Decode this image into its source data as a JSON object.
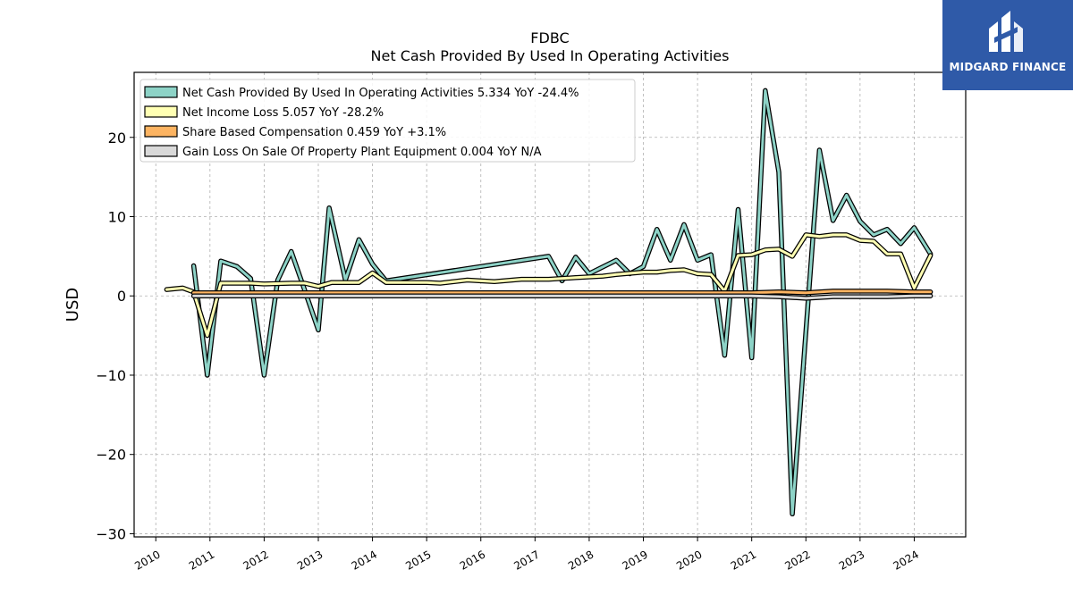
{
  "brand": {
    "name": "MIDGARD FINANCE",
    "icon": "midgard-logo-icon",
    "color": "#2f5aa8"
  },
  "chart_data": {
    "type": "line",
    "title": "FDBC",
    "subtitle": "Net Cash Provided By Used In Operating Activities",
    "xlabel": "",
    "ylabel": "USD",
    "xlim": [
      2009.6,
      2024.95
    ],
    "ylim": [
      -30.4,
      28.2
    ],
    "x_ticks": [
      "2010",
      "2011",
      "2012",
      "2013",
      "2014",
      "2015",
      "2016",
      "2017",
      "2018",
      "2019",
      "2020",
      "2021",
      "2022",
      "2023",
      "2024"
    ],
    "y_ticks": [
      20,
      10,
      0,
      -10,
      -20,
      -30
    ],
    "y_tick_labels": [
      "20",
      "10",
      "0",
      "−10",
      "−20",
      "−30"
    ],
    "grid": true,
    "legend_position": "top-left",
    "series": [
      {
        "name": "Net Cash Provided By Used In Operating Activities",
        "legend": "Net Cash Provided By Used In Operating Activities  5.334 YoY -24.4%",
        "color": "#8dd3c7",
        "points": [
          [
            2010.7,
            3.8
          ],
          [
            2010.95,
            -10.0
          ],
          [
            2011.2,
            4.4
          ],
          [
            2011.5,
            3.7
          ],
          [
            2011.75,
            2.2
          ],
          [
            2012.0,
            -10.0
          ],
          [
            2012.25,
            2.0
          ],
          [
            2012.5,
            5.6
          ],
          [
            2012.75,
            0.7
          ],
          [
            2013.0,
            -4.3
          ],
          [
            2013.2,
            11.1
          ],
          [
            2013.5,
            2.0
          ],
          [
            2013.75,
            7.1
          ],
          [
            2014.0,
            4.0
          ],
          [
            2014.25,
            1.9
          ],
          [
            2017.25,
            5.0
          ],
          [
            2017.5,
            1.9
          ],
          [
            2017.75,
            4.9
          ],
          [
            2018.0,
            2.8
          ],
          [
            2018.5,
            4.5
          ],
          [
            2018.75,
            2.8
          ],
          [
            2019.0,
            3.7
          ],
          [
            2019.25,
            8.4
          ],
          [
            2019.5,
            4.5
          ],
          [
            2019.75,
            9.0
          ],
          [
            2020.0,
            4.5
          ],
          [
            2020.25,
            5.2
          ],
          [
            2020.5,
            -7.5
          ],
          [
            2020.75,
            10.9
          ],
          [
            2021.0,
            -7.8
          ],
          [
            2021.25,
            25.9
          ],
          [
            2021.5,
            15.6
          ],
          [
            2021.75,
            -27.5
          ],
          [
            2022.25,
            18.4
          ],
          [
            2022.5,
            9.5
          ],
          [
            2022.75,
            12.7
          ],
          [
            2023.0,
            9.4
          ],
          [
            2023.25,
            7.7
          ],
          [
            2023.5,
            8.4
          ],
          [
            2023.75,
            6.6
          ],
          [
            2024.0,
            8.6
          ],
          [
            2024.3,
            5.3
          ]
        ]
      },
      {
        "name": "Net Income Loss",
        "legend": "Net Income Loss  5.057 YoY -28.2%",
        "color": "#ffffb3",
        "points": [
          [
            2010.2,
            0.8
          ],
          [
            2010.5,
            1.0
          ],
          [
            2010.7,
            0.5
          ],
          [
            2010.95,
            -5.0
          ],
          [
            2011.2,
            1.6
          ],
          [
            2011.5,
            1.6
          ],
          [
            2011.75,
            1.6
          ],
          [
            2012.0,
            1.5
          ],
          [
            2012.5,
            1.6
          ],
          [
            2012.75,
            1.6
          ],
          [
            2013.0,
            1.2
          ],
          [
            2013.25,
            1.7
          ],
          [
            2013.75,
            1.7
          ],
          [
            2014.0,
            2.9
          ],
          [
            2014.25,
            1.7
          ],
          [
            2015.0,
            1.7
          ],
          [
            2015.25,
            1.6
          ],
          [
            2015.75,
            2.0
          ],
          [
            2016.25,
            1.8
          ],
          [
            2016.75,
            2.1
          ],
          [
            2017.25,
            2.1
          ],
          [
            2017.75,
            2.3
          ],
          [
            2018.25,
            2.5
          ],
          [
            2018.5,
            2.7
          ],
          [
            2019.0,
            3.0
          ],
          [
            2019.25,
            3.0
          ],
          [
            2019.5,
            3.2
          ],
          [
            2019.75,
            3.3
          ],
          [
            2020.0,
            2.8
          ],
          [
            2020.25,
            2.7
          ],
          [
            2020.5,
            0.6
          ],
          [
            2020.75,
            5.1
          ],
          [
            2021.0,
            5.2
          ],
          [
            2021.25,
            5.8
          ],
          [
            2021.5,
            5.9
          ],
          [
            2021.75,
            5.0
          ],
          [
            2022.0,
            7.7
          ],
          [
            2022.25,
            7.5
          ],
          [
            2022.5,
            7.7
          ],
          [
            2022.75,
            7.7
          ],
          [
            2023.0,
            7.0
          ],
          [
            2023.25,
            6.9
          ],
          [
            2023.5,
            5.3
          ],
          [
            2023.75,
            5.3
          ],
          [
            2024.0,
            1.0
          ],
          [
            2024.3,
            5.1
          ]
        ]
      },
      {
        "name": "Share Based Compensation",
        "legend": "Share Based Compensation  0.459 YoY +3.1%",
        "color": "#fdb462",
        "points": [
          [
            2010.7,
            0.4
          ],
          [
            2011.0,
            0.4
          ],
          [
            2012.0,
            0.4
          ],
          [
            2013.0,
            0.4
          ],
          [
            2014.0,
            0.4
          ],
          [
            2015.0,
            0.4
          ],
          [
            2016.0,
            0.4
          ],
          [
            2017.0,
            0.4
          ],
          [
            2018.0,
            0.4
          ],
          [
            2019.0,
            0.4
          ],
          [
            2020.0,
            0.4
          ],
          [
            2020.5,
            0.4
          ],
          [
            2021.0,
            0.4
          ],
          [
            2021.5,
            0.5
          ],
          [
            2022.0,
            0.4
          ],
          [
            2022.5,
            0.6
          ],
          [
            2023.0,
            0.6
          ],
          [
            2023.5,
            0.6
          ],
          [
            2024.0,
            0.5
          ],
          [
            2024.3,
            0.5
          ]
        ]
      },
      {
        "name": "Gain Loss On Sale Of Property Plant Equipment",
        "legend": "Gain Loss On Sale Of Property Plant Equipment  0.004 YoY N/A",
        "color": "#d9d9d9",
        "points": [
          [
            2010.7,
            0.0
          ],
          [
            2012.0,
            0.0
          ],
          [
            2014.0,
            0.0
          ],
          [
            2016.0,
            0.0
          ],
          [
            2018.0,
            0.0
          ],
          [
            2020.0,
            0.0
          ],
          [
            2021.0,
            0.0
          ],
          [
            2021.5,
            -0.1
          ],
          [
            2022.0,
            -0.3
          ],
          [
            2022.5,
            -0.1
          ],
          [
            2023.0,
            -0.1
          ],
          [
            2023.5,
            -0.1
          ],
          [
            2024.0,
            0.0
          ],
          [
            2024.3,
            0.0
          ]
        ]
      }
    ]
  }
}
